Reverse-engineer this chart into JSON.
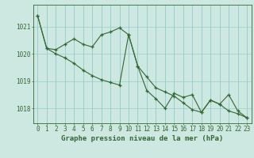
{
  "title": "Graphe pression niveau de la mer (hPa)",
  "hours": [
    0,
    1,
    2,
    3,
    4,
    5,
    6,
    7,
    8,
    9,
    10,
    11,
    12,
    13,
    14,
    15,
    16,
    17,
    18,
    19,
    20,
    21,
    22,
    23
  ],
  "line1": [
    1021.4,
    1020.2,
    1020.15,
    1020.35,
    1020.55,
    1020.35,
    1020.25,
    1020.7,
    1020.8,
    1020.95,
    1020.7,
    1019.55,
    1019.15,
    1018.75,
    1018.6,
    1018.45,
    1018.2,
    1017.95,
    1017.85,
    1018.3,
    1018.15,
    1017.9,
    1017.8,
    1017.65
  ],
  "line2": [
    1021.4,
    1020.2,
    1020.0,
    1019.85,
    1019.65,
    1019.4,
    1019.2,
    1019.05,
    1018.95,
    1018.85,
    1020.7,
    1019.55,
    1018.65,
    1018.35,
    1018.0,
    1018.55,
    1018.4,
    1018.5,
    1017.85,
    1018.3,
    1018.15,
    1018.5,
    1017.9,
    1017.65
  ],
  "ylim": [
    1017.45,
    1021.8
  ],
  "yticks": [
    1018,
    1019,
    1020,
    1021
  ],
  "line_color": "#336633",
  "bg_color": "#cce8e0",
  "grid_color": "#99cccc",
  "tick_fontsize": 5.5,
  "label_fontsize": 6.5
}
